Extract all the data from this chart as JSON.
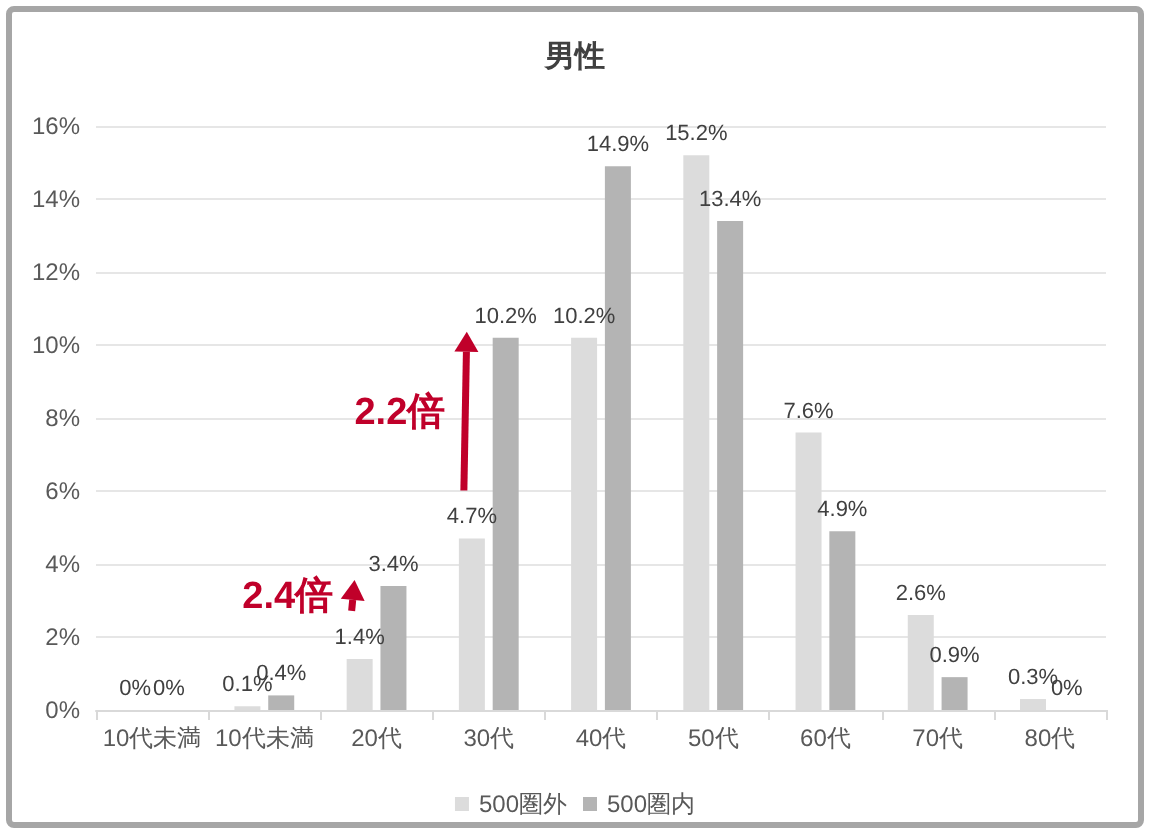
{
  "chart_data": {
    "type": "bar",
    "title": "男性",
    "categories": [
      "10代未満",
      "10代未満",
      "20代",
      "30代",
      "40代",
      "50代",
      "60代",
      "70代",
      "80代"
    ],
    "series": [
      {
        "name": "500圏外",
        "color": "#dcdcdc",
        "values": [
          0,
          0.1,
          1.4,
          4.7,
          10.2,
          15.2,
          7.6,
          2.6,
          0.3
        ],
        "value_labels": [
          "0%",
          "0.1%",
          "1.4%",
          "4.7%",
          "10.2%",
          "15.2%",
          "7.6%",
          "2.6%",
          "0.3%"
        ]
      },
      {
        "name": "500圏内",
        "color": "#b4b4b4",
        "values": [
          0,
          0.4,
          3.4,
          10.2,
          14.9,
          13.4,
          4.9,
          0.9,
          0
        ],
        "value_labels": [
          "0%",
          "0.4%",
          "3.4%",
          "10.2%",
          "14.9%",
          "13.4%",
          "4.9%",
          "0.9%",
          "0%"
        ]
      }
    ],
    "ylim": [
      0,
      16
    ],
    "yticks": [
      {
        "value": 0,
        "label": "0%"
      },
      {
        "value": 2,
        "label": "2%"
      },
      {
        "value": 4,
        "label": "4%"
      },
      {
        "value": 6,
        "label": "6%"
      },
      {
        "value": 8,
        "label": "8%"
      },
      {
        "value": 10,
        "label": "10%"
      },
      {
        "value": 12,
        "label": "12%"
      },
      {
        "value": 14,
        "label": "14%"
      },
      {
        "value": 16,
        "label": "16%"
      }
    ],
    "grid": "y",
    "legend": "bottom",
    "annotations": [
      {
        "text": "2.4倍",
        "x": "20代",
        "y": 3.4
      },
      {
        "text": "2.2倍",
        "x": "30代",
        "y": 10.2
      }
    ]
  }
}
